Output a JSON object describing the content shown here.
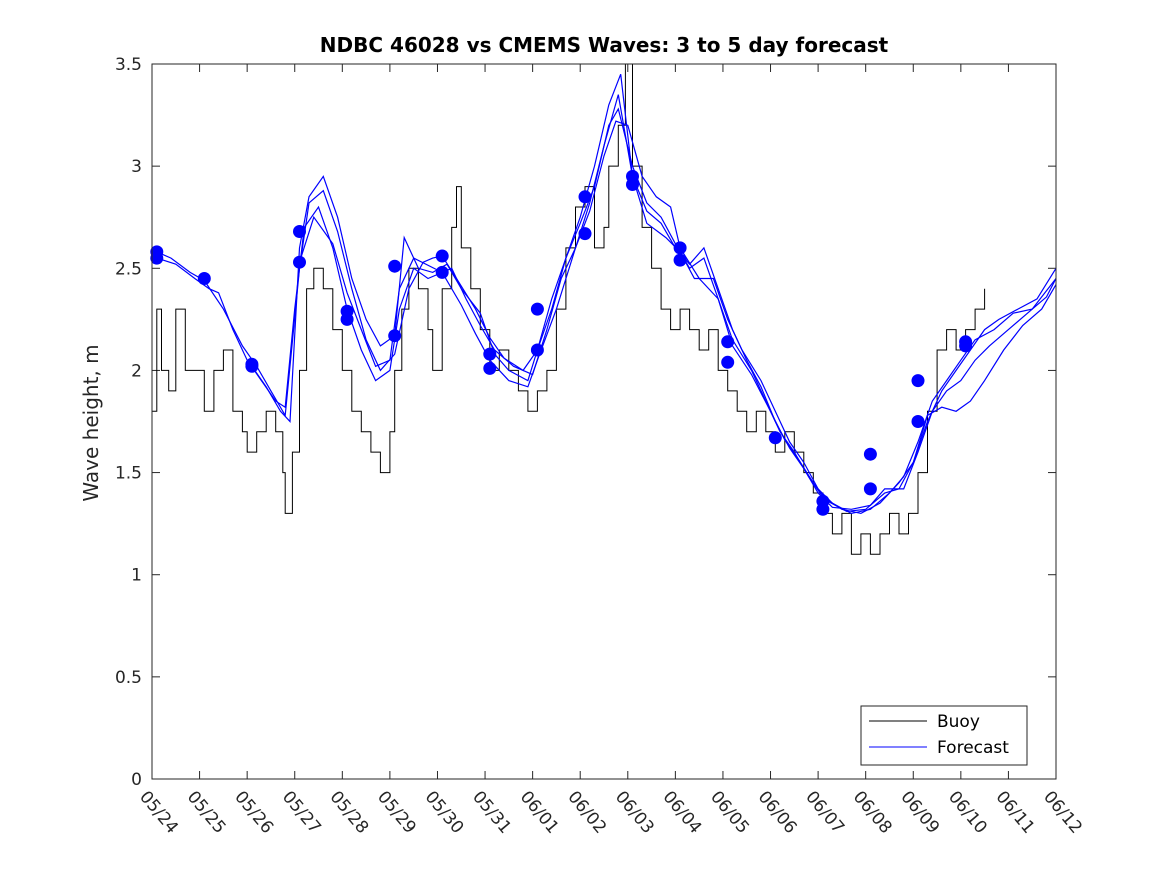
{
  "chart_data": {
    "type": "line",
    "title": "NDBC 46028 vs CMEMS Waves: 3 to 5 day forecast",
    "xlabel": "",
    "ylabel": "Wave height, m",
    "ylim": [
      0,
      3.5
    ],
    "yticks": [
      "0",
      "0.5",
      "1",
      "1.5",
      "2",
      "2.5",
      "3",
      "3.5"
    ],
    "xlim": [
      0,
      19
    ],
    "xticks": [
      "05/24",
      "05/25",
      "05/26",
      "05/27",
      "05/28",
      "05/29",
      "05/30",
      "05/31",
      "06/01",
      "06/02",
      "06/03",
      "06/04",
      "06/05",
      "06/06",
      "06/07",
      "06/08",
      "06/09",
      "06/10",
      "06/11",
      "06/12"
    ],
    "legend": {
      "position": "bottom-right",
      "entries": [
        "Buoy",
        "Forecast"
      ]
    },
    "colors": {
      "buoy": "#000000",
      "forecast": "#0000ff",
      "marker": "#0000ff"
    },
    "buoy_points": [
      [
        0.0,
        1.8
      ],
      [
        0.1,
        2.3
      ],
      [
        0.2,
        2.0
      ],
      [
        0.35,
        1.9
      ],
      [
        0.5,
        2.3
      ],
      [
        0.7,
        2.0
      ],
      [
        0.9,
        2.0
      ],
      [
        1.1,
        1.8
      ],
      [
        1.3,
        2.0
      ],
      [
        1.5,
        2.1
      ],
      [
        1.7,
        1.8
      ],
      [
        1.9,
        1.7
      ],
      [
        2.0,
        1.6
      ],
      [
        2.2,
        1.7
      ],
      [
        2.4,
        1.8
      ],
      [
        2.6,
        1.7
      ],
      [
        2.75,
        1.5
      ],
      [
        2.8,
        1.3
      ],
      [
        2.95,
        1.6
      ],
      [
        3.1,
        2.0
      ],
      [
        3.25,
        2.4
      ],
      [
        3.4,
        2.5
      ],
      [
        3.6,
        2.4
      ],
      [
        3.8,
        2.2
      ],
      [
        4.0,
        2.0
      ],
      [
        4.2,
        1.8
      ],
      [
        4.4,
        1.7
      ],
      [
        4.6,
        1.6
      ],
      [
        4.8,
        1.5
      ],
      [
        5.0,
        1.7
      ],
      [
        5.1,
        2.0
      ],
      [
        5.25,
        2.3
      ],
      [
        5.4,
        2.5
      ],
      [
        5.6,
        2.4
      ],
      [
        5.8,
        2.2
      ],
      [
        5.9,
        2.0
      ],
      [
        6.1,
        2.4
      ],
      [
        6.3,
        2.7
      ],
      [
        6.4,
        2.9
      ],
      [
        6.5,
        2.6
      ],
      [
        6.7,
        2.4
      ],
      [
        6.9,
        2.2
      ],
      [
        7.1,
        2.0
      ],
      [
        7.3,
        2.1
      ],
      [
        7.5,
        2.0
      ],
      [
        7.7,
        1.9
      ],
      [
        7.9,
        1.8
      ],
      [
        8.1,
        1.9
      ],
      [
        8.3,
        2.0
      ],
      [
        8.5,
        2.3
      ],
      [
        8.7,
        2.6
      ],
      [
        8.9,
        2.8
      ],
      [
        9.1,
        2.9
      ],
      [
        9.3,
        2.6
      ],
      [
        9.5,
        2.7
      ],
      [
        9.6,
        3.0
      ],
      [
        9.8,
        3.2
      ],
      [
        9.95,
        3.5
      ],
      [
        10.1,
        3.0
      ],
      [
        10.3,
        2.7
      ],
      [
        10.5,
        2.5
      ],
      [
        10.7,
        2.3
      ],
      [
        10.9,
        2.2
      ],
      [
        11.1,
        2.3
      ],
      [
        11.3,
        2.2
      ],
      [
        11.5,
        2.1
      ],
      [
        11.7,
        2.2
      ],
      [
        11.9,
        2.0
      ],
      [
        12.1,
        1.9
      ],
      [
        12.3,
        1.8
      ],
      [
        12.5,
        1.7
      ],
      [
        12.7,
        1.8
      ],
      [
        12.9,
        1.7
      ],
      [
        13.1,
        1.6
      ],
      [
        13.3,
        1.7
      ],
      [
        13.5,
        1.6
      ],
      [
        13.7,
        1.5
      ],
      [
        13.9,
        1.4
      ],
      [
        14.1,
        1.3
      ],
      [
        14.3,
        1.2
      ],
      [
        14.5,
        1.3
      ],
      [
        14.7,
        1.1
      ],
      [
        14.9,
        1.2
      ],
      [
        15.1,
        1.1
      ],
      [
        15.3,
        1.2
      ],
      [
        15.5,
        1.3
      ],
      [
        15.7,
        1.2
      ],
      [
        15.9,
        1.3
      ],
      [
        16.1,
        1.5
      ],
      [
        16.3,
        1.8
      ],
      [
        16.5,
        2.1
      ],
      [
        16.7,
        2.2
      ],
      [
        16.9,
        2.1
      ],
      [
        17.1,
        2.2
      ],
      [
        17.3,
        2.3
      ],
      [
        17.5,
        2.4
      ]
    ],
    "forecast_series": [
      [
        [
          0.1,
          2.58
        ],
        [
          0.4,
          2.55
        ],
        [
          0.8,
          2.48
        ],
        [
          1.1,
          2.44
        ],
        [
          1.5,
          2.3
        ],
        [
          1.9,
          2.12
        ],
        [
          2.2,
          2.02
        ],
        [
          2.5,
          1.9
        ],
        [
          2.8,
          1.78
        ],
        [
          3.1,
          2.5
        ],
        [
          3.3,
          2.82
        ],
        [
          3.6,
          2.88
        ],
        [
          3.9,
          2.68
        ],
        [
          4.2,
          2.4
        ],
        [
          4.5,
          2.15
        ],
        [
          4.8,
          2.0
        ],
        [
          5.1,
          2.08
        ],
        [
          5.4,
          2.4
        ],
        [
          5.7,
          2.53
        ],
        [
          5.9,
          2.55
        ],
        [
          6.1,
          2.56
        ],
        [
          6.4,
          2.45
        ],
        [
          6.8,
          2.3
        ],
        [
          7.1,
          2.16
        ],
        [
          7.4,
          2.06
        ],
        [
          7.8,
          2.0
        ],
        [
          8.1,
          2.1
        ],
        [
          8.4,
          2.3
        ],
        [
          8.7,
          2.55
        ],
        [
          9.0,
          2.72
        ],
        [
          9.3,
          2.9
        ],
        [
          9.6,
          3.2
        ],
        [
          9.8,
          3.28
        ],
        [
          10.1,
          3.0
        ],
        [
          10.4,
          2.82
        ],
        [
          10.7,
          2.75
        ],
        [
          11.0,
          2.62
        ],
        [
          11.3,
          2.5
        ],
        [
          11.6,
          2.55
        ],
        [
          11.9,
          2.35
        ],
        [
          12.2,
          2.15
        ],
        [
          12.6,
          2.0
        ],
        [
          12.9,
          1.85
        ],
        [
          13.2,
          1.7
        ],
        [
          13.5,
          1.6
        ],
        [
          13.8,
          1.48
        ],
        [
          14.1,
          1.38
        ],
        [
          14.5,
          1.32
        ],
        [
          14.9,
          1.3
        ],
        [
          15.3,
          1.35
        ],
        [
          15.7,
          1.45
        ],
        [
          16.0,
          1.55
        ],
        [
          16.3,
          1.75
        ],
        [
          16.6,
          1.9
        ],
        [
          16.9,
          2.0
        ],
        [
          17.2,
          2.1
        ],
        [
          17.5,
          2.2
        ],
        [
          17.8,
          2.25
        ],
        [
          18.2,
          2.3
        ],
        [
          18.6,
          2.35
        ],
        [
          19.0,
          2.5
        ]
      ],
      [
        [
          0.1,
          2.55
        ],
        [
          0.5,
          2.52
        ],
        [
          0.9,
          2.45
        ],
        [
          1.2,
          2.4
        ],
        [
          1.4,
          2.38
        ],
        [
          1.7,
          2.2
        ],
        [
          2.0,
          2.05
        ],
        [
          2.3,
          1.95
        ],
        [
          2.6,
          1.85
        ],
        [
          2.8,
          1.82
        ],
        [
          3.0,
          2.3
        ],
        [
          3.2,
          2.7
        ],
        [
          3.5,
          2.8
        ],
        [
          3.8,
          2.6
        ],
        [
          4.1,
          2.3
        ],
        [
          4.4,
          2.1
        ],
        [
          4.7,
          1.95
        ],
        [
          5.0,
          2.0
        ],
        [
          5.2,
          2.3
        ],
        [
          5.5,
          2.5
        ],
        [
          5.8,
          2.45
        ],
        [
          6.1,
          2.48
        ],
        [
          6.3,
          2.5
        ],
        [
          6.6,
          2.35
        ],
        [
          6.9,
          2.22
        ],
        [
          7.2,
          2.1
        ],
        [
          7.6,
          2.02
        ],
        [
          8.0,
          1.98
        ],
        [
          8.3,
          2.2
        ],
        [
          8.6,
          2.45
        ],
        [
          8.9,
          2.6
        ],
        [
          9.2,
          2.82
        ],
        [
          9.5,
          3.1
        ],
        [
          9.8,
          3.35
        ],
        [
          10.1,
          2.95
        ],
        [
          10.4,
          2.72
        ],
        [
          10.8,
          2.65
        ],
        [
          11.1,
          2.58
        ],
        [
          11.4,
          2.45
        ],
        [
          11.8,
          2.45
        ],
        [
          12.1,
          2.25
        ],
        [
          12.4,
          2.1
        ],
        [
          12.8,
          1.95
        ],
        [
          13.1,
          1.8
        ],
        [
          13.4,
          1.65
        ],
        [
          13.7,
          1.55
        ],
        [
          14.0,
          1.42
        ],
        [
          14.3,
          1.35
        ],
        [
          14.7,
          1.3
        ],
        [
          15.1,
          1.32
        ],
        [
          15.5,
          1.4
        ],
        [
          15.8,
          1.48
        ],
        [
          16.1,
          1.65
        ],
        [
          16.4,
          1.85
        ],
        [
          16.7,
          1.95
        ],
        [
          17.0,
          2.05
        ],
        [
          17.3,
          2.15
        ],
        [
          17.7,
          2.2
        ],
        [
          18.1,
          2.28
        ],
        [
          18.5,
          2.3
        ],
        [
          19.0,
          2.45
        ]
      ],
      [
        [
          2.1,
          2.02
        ],
        [
          2.4,
          1.92
        ],
        [
          2.7,
          1.8
        ],
        [
          2.9,
          1.75
        ],
        [
          3.1,
          2.6
        ],
        [
          3.3,
          2.85
        ],
        [
          3.6,
          2.95
        ],
        [
          3.9,
          2.75
        ],
        [
          4.2,
          2.45
        ],
        [
          4.5,
          2.25
        ],
        [
          4.8,
          2.12
        ],
        [
          5.1,
          2.17
        ],
        [
          5.3,
          2.65
        ],
        [
          5.6,
          2.5
        ],
        [
          5.9,
          2.48
        ],
        [
          6.2,
          2.52
        ],
        [
          6.5,
          2.4
        ],
        [
          6.9,
          2.28
        ],
        [
          7.2,
          2.08
        ],
        [
          7.5,
          2.0
        ],
        [
          7.9,
          1.95
        ],
        [
          8.1,
          2.1
        ],
        [
          8.4,
          2.35
        ],
        [
          8.7,
          2.55
        ],
        [
          9.0,
          2.75
        ],
        [
          9.3,
          3.0
        ],
        [
          9.6,
          3.3
        ],
        [
          9.85,
          3.45
        ],
        [
          10.1,
          2.95
        ],
        [
          10.4,
          2.78
        ],
        [
          10.7,
          2.72
        ],
        [
          11.0,
          2.6
        ],
        [
          11.3,
          2.52
        ],
        [
          11.6,
          2.6
        ],
        [
          11.9,
          2.4
        ],
        [
          12.2,
          2.2
        ],
        [
          12.5,
          2.05
        ],
        [
          12.8,
          1.92
        ],
        [
          13.1,
          1.75
        ],
        [
          13.4,
          1.62
        ],
        [
          13.7,
          1.52
        ],
        [
          14.0,
          1.4
        ],
        [
          14.3,
          1.33
        ],
        [
          14.7,
          1.32
        ],
        [
          15.1,
          1.34
        ],
        [
          15.4,
          1.42
        ],
        [
          15.8,
          1.42
        ],
        [
          16.1,
          1.6
        ],
        [
          16.4,
          1.8
        ],
        [
          16.7,
          1.9
        ],
        [
          17.0,
          1.95
        ],
        [
          17.3,
          2.05
        ],
        [
          17.6,
          2.12
        ],
        [
          18.0,
          2.2
        ],
        [
          18.4,
          2.28
        ],
        [
          18.8,
          2.36
        ],
        [
          19.0,
          2.45
        ]
      ],
      [
        [
          3.1,
          2.53
        ],
        [
          3.4,
          2.75
        ],
        [
          3.8,
          2.62
        ],
        [
          4.1,
          2.38
        ],
        [
          4.4,
          2.2
        ],
        [
          4.7,
          2.02
        ],
        [
          5.0,
          2.05
        ],
        [
          5.2,
          2.4
        ],
        [
          5.5,
          2.55
        ],
        [
          6.1,
          2.48
        ],
        [
          6.5,
          2.32
        ],
        [
          6.8,
          2.18
        ],
        [
          7.1,
          2.05
        ],
        [
          7.5,
          1.95
        ],
        [
          7.9,
          1.92
        ],
        [
          8.1,
          2.05
        ],
        [
          8.5,
          2.3
        ],
        [
          8.9,
          2.6
        ],
        [
          9.2,
          2.78
        ],
        [
          9.5,
          3.05
        ],
        [
          9.75,
          3.22
        ],
        [
          10.0,
          3.2
        ],
        [
          10.3,
          2.95
        ],
        [
          10.6,
          2.85
        ],
        [
          10.9,
          2.8
        ],
        [
          11.1,
          2.6
        ],
        [
          11.5,
          2.45
        ],
        [
          11.9,
          2.35
        ],
        [
          12.2,
          2.12
        ],
        [
          12.6,
          1.98
        ],
        [
          13.0,
          1.8
        ],
        [
          13.3,
          1.66
        ],
        [
          13.6,
          1.56
        ],
        [
          13.9,
          1.45
        ],
        [
          14.2,
          1.36
        ],
        [
          14.6,
          1.31
        ],
        [
          15.0,
          1.32
        ],
        [
          15.4,
          1.4
        ],
        [
          15.7,
          1.42
        ],
        [
          16.0,
          1.55
        ],
        [
          16.3,
          1.78
        ],
        [
          16.6,
          1.82
        ],
        [
          16.9,
          1.8
        ],
        [
          17.2,
          1.85
        ],
        [
          17.5,
          1.95
        ],
        [
          17.9,
          2.1
        ],
        [
          18.3,
          2.22
        ],
        [
          18.7,
          2.3
        ],
        [
          19.0,
          2.42
        ]
      ]
    ],
    "forecast_markers": [
      [
        0.1,
        2.58
      ],
      [
        0.1,
        2.55
      ],
      [
        1.1,
        2.45
      ],
      [
        2.1,
        2.03
      ],
      [
        2.1,
        2.02
      ],
      [
        3.1,
        2.68
      ],
      [
        3.1,
        2.53
      ],
      [
        4.1,
        2.29
      ],
      [
        4.1,
        2.25
      ],
      [
        5.1,
        2.51
      ],
      [
        5.1,
        2.17
      ],
      [
        6.1,
        2.56
      ],
      [
        6.1,
        2.48
      ],
      [
        7.1,
        2.08
      ],
      [
        7.1,
        2.01
      ],
      [
        8.1,
        2.3
      ],
      [
        8.1,
        2.1
      ],
      [
        9.1,
        2.85
      ],
      [
        9.1,
        2.67
      ],
      [
        10.1,
        2.95
      ],
      [
        10.1,
        2.91
      ],
      [
        11.1,
        2.6
      ],
      [
        11.1,
        2.54
      ],
      [
        12.1,
        2.14
      ],
      [
        12.1,
        2.04
      ],
      [
        13.1,
        1.67
      ],
      [
        14.1,
        1.36
      ],
      [
        14.1,
        1.32
      ],
      [
        15.1,
        1.59
      ],
      [
        15.1,
        1.42
      ],
      [
        16.1,
        1.95
      ],
      [
        16.1,
        1.75
      ],
      [
        17.1,
        2.14
      ],
      [
        17.1,
        2.12
      ]
    ]
  }
}
